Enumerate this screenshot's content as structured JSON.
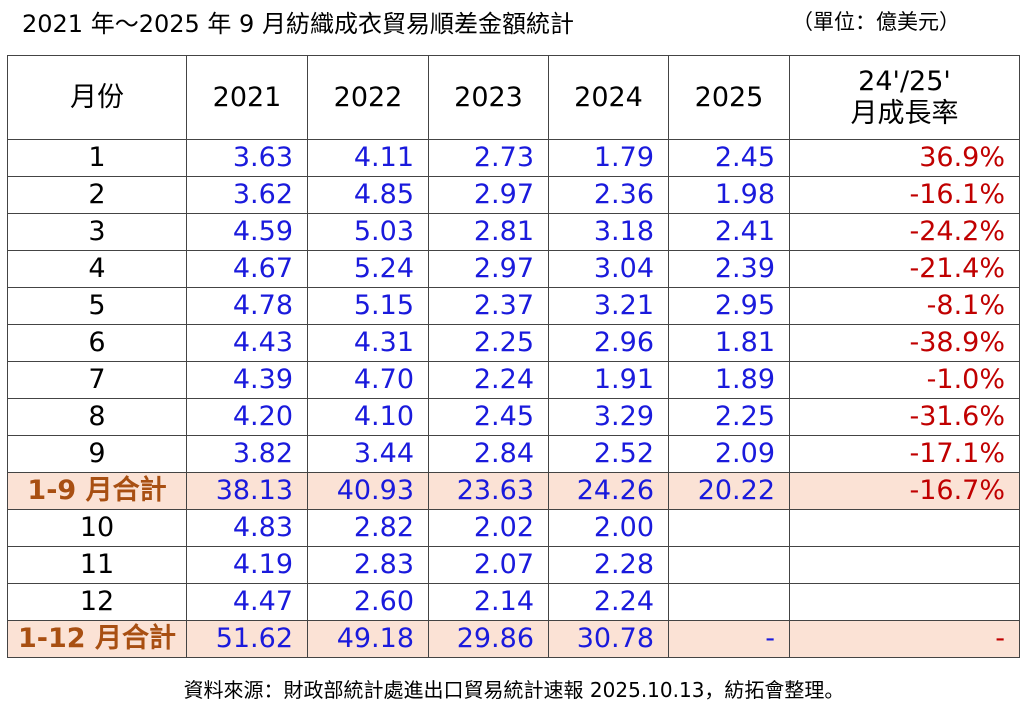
{
  "header": {
    "title": "2021 年～2025 年 9 月紡織成衣貿易順差金額統計",
    "unit": "（單位：億美元）"
  },
  "table": {
    "columns": [
      "月份",
      "2021",
      "2022",
      "2023",
      "2024",
      "2025",
      "24'/25'\n月成長率"
    ],
    "rows": [
      {
        "cells": [
          "1",
          "3.63",
          "4.11",
          "2.73",
          "1.79",
          "2.45",
          "36.9%"
        ]
      },
      {
        "cells": [
          "2",
          "3.62",
          "4.85",
          "2.97",
          "2.36",
          "1.98",
          "-16.1%"
        ]
      },
      {
        "cells": [
          "3",
          "4.59",
          "5.03",
          "2.81",
          "3.18",
          "2.41",
          "-24.2%"
        ]
      },
      {
        "cells": [
          "4",
          "4.67",
          "5.24",
          "2.97",
          "3.04",
          "2.39",
          "-21.4%"
        ]
      },
      {
        "cells": [
          "5",
          "4.78",
          "5.15",
          "2.37",
          "3.21",
          "2.95",
          "-8.1%"
        ]
      },
      {
        "cells": [
          "6",
          "4.43",
          "4.31",
          "2.25",
          "2.96",
          "1.81",
          "-38.9%"
        ]
      },
      {
        "cells": [
          "7",
          "4.39",
          "4.70",
          "2.24",
          "1.91",
          "1.89",
          "-1.0%"
        ]
      },
      {
        "cells": [
          "8",
          "4.20",
          "4.10",
          "2.45",
          "3.29",
          "2.25",
          "-31.6%"
        ]
      },
      {
        "cells": [
          "9",
          "3.82",
          "3.44",
          "2.84",
          "2.52",
          "2.09",
          "-17.1%"
        ]
      },
      {
        "cells": [
          "1-9 月合計",
          "38.13",
          "40.93",
          "23.63",
          "24.26",
          "20.22",
          "-16.7%"
        ],
        "total": true
      },
      {
        "cells": [
          "10",
          "4.83",
          "2.82",
          "2.02",
          "2.00",
          null,
          null
        ]
      },
      {
        "cells": [
          "11",
          "4.19",
          "2.83",
          "2.07",
          "2.28",
          null,
          null
        ]
      },
      {
        "cells": [
          "12",
          "4.47",
          "2.60",
          "2.14",
          "2.24",
          null,
          null
        ]
      },
      {
        "cells": [
          "1-12 月合計",
          "51.62",
          "49.18",
          "29.86",
          "30.78",
          "-",
          "-"
        ],
        "total": true
      }
    ]
  },
  "footer": "資料來源：財政部統計處進出口貿易統計速報 2025.10.13，紡拓會整理。"
}
